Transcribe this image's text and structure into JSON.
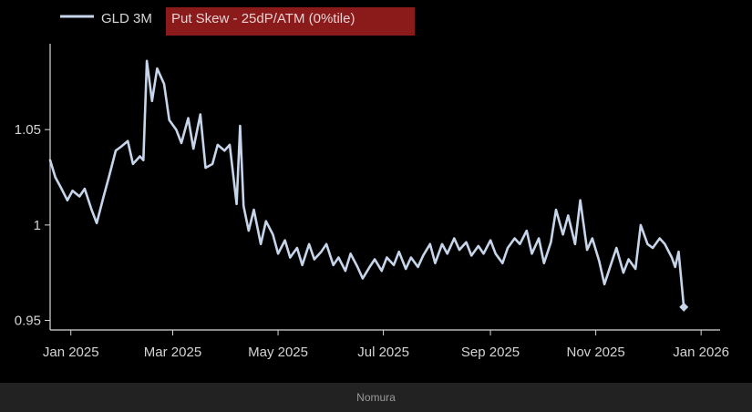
{
  "chart_data": {
    "type": "line",
    "legend": {
      "prefix": "GLD 3M",
      "highlight": "Put Skew - 25dP/ATM (0%tile)",
      "highlight_color": "#8b1a1a"
    },
    "title": "",
    "xlabel": "",
    "ylabel": "",
    "line_color": "#c7d5ea",
    "ylim": [
      0.945,
      1.095
    ],
    "xlim": [
      "2024-12-20",
      "2026-01-12"
    ],
    "y_ticks": [
      {
        "value": 0.95,
        "label": "0.95"
      },
      {
        "value": 1.0,
        "label": "1"
      },
      {
        "value": 1.05,
        "label": "1.05"
      }
    ],
    "x_ticks": [
      {
        "date": "2025-01-01",
        "label": "Jan 2025"
      },
      {
        "date": "2025-03-01",
        "label": "Mar 2025"
      },
      {
        "date": "2025-05-01",
        "label": "May 2025"
      },
      {
        "date": "2025-07-01",
        "label": "Jul 2025"
      },
      {
        "date": "2025-09-01",
        "label": "Sep 2025"
      },
      {
        "date": "2025-11-01",
        "label": "Nov 2025"
      },
      {
        "date": "2026-01-01",
        "label": "Jan 2026"
      }
    ],
    "series": [
      {
        "x": [
          "2024-12-20",
          "2024-12-23",
          "2024-12-26",
          "2024-12-30",
          "2025-01-02",
          "2025-01-06",
          "2025-01-09",
          "2025-01-13",
          "2025-01-16",
          "2025-01-20",
          "2025-01-23",
          "2025-01-27",
          "2025-01-30",
          "2025-02-03",
          "2025-02-06",
          "2025-02-10",
          "2025-02-12",
          "2025-02-14",
          "2025-02-17",
          "2025-02-20",
          "2025-02-24",
          "2025-02-27",
          "2025-03-03",
          "2025-03-06",
          "2025-03-10",
          "2025-03-13",
          "2025-03-17",
          "2025-03-20",
          "2025-03-24",
          "2025-03-27",
          "2025-03-31",
          "2025-04-03",
          "2025-04-07",
          "2025-04-09",
          "2025-04-11",
          "2025-04-14",
          "2025-04-17",
          "2025-04-21",
          "2025-04-24",
          "2025-04-28",
          "2025-05-01",
          "2025-05-05",
          "2025-05-08",
          "2025-05-12",
          "2025-05-15",
          "2025-05-19",
          "2025-05-22",
          "2025-05-26",
          "2025-05-29",
          "2025-06-02",
          "2025-06-05",
          "2025-06-09",
          "2025-06-12",
          "2025-06-16",
          "2025-06-19",
          "2025-06-23",
          "2025-06-26",
          "2025-06-30",
          "2025-07-03",
          "2025-07-07",
          "2025-07-10",
          "2025-07-14",
          "2025-07-17",
          "2025-07-21",
          "2025-07-24",
          "2025-07-28",
          "2025-07-31",
          "2025-08-04",
          "2025-08-07",
          "2025-08-11",
          "2025-08-14",
          "2025-08-18",
          "2025-08-21",
          "2025-08-25",
          "2025-08-28",
          "2025-09-01",
          "2025-09-04",
          "2025-09-08",
          "2025-09-11",
          "2025-09-15",
          "2025-09-18",
          "2025-09-22",
          "2025-09-25",
          "2025-09-29",
          "2025-10-02",
          "2025-10-06",
          "2025-10-09",
          "2025-10-13",
          "2025-10-16",
          "2025-10-20",
          "2025-10-23",
          "2025-10-27",
          "2025-10-30",
          "2025-11-03",
          "2025-11-06",
          "2025-11-10",
          "2025-11-13",
          "2025-11-17",
          "2025-11-20",
          "2025-11-24",
          "2025-11-27",
          "2025-12-01",
          "2025-12-04",
          "2025-12-08",
          "2025-12-11",
          "2025-12-15",
          "2025-12-17",
          "2025-12-19",
          "2025-12-22"
        ],
        "y": [
          1.034,
          1.025,
          1.02,
          1.013,
          1.018,
          1.015,
          1.019,
          1.008,
          1.001,
          1.015,
          1.025,
          1.039,
          1.041,
          1.044,
          1.032,
          1.036,
          1.034,
          1.086,
          1.065,
          1.082,
          1.074,
          1.055,
          1.05,
          1.043,
          1.056,
          1.04,
          1.058,
          1.03,
          1.032,
          1.042,
          1.039,
          1.042,
          1.011,
          1.052,
          1.01,
          0.997,
          1.008,
          0.99,
          1.002,
          0.995,
          0.985,
          0.992,
          0.983,
          0.988,
          0.979,
          0.99,
          0.982,
          0.986,
          0.99,
          0.979,
          0.983,
          0.976,
          0.985,
          0.978,
          0.972,
          0.978,
          0.982,
          0.976,
          0.983,
          0.979,
          0.986,
          0.977,
          0.983,
          0.978,
          0.984,
          0.99,
          0.98,
          0.99,
          0.985,
          0.993,
          0.987,
          0.991,
          0.984,
          0.989,
          0.985,
          0.992,
          0.985,
          0.98,
          0.988,
          0.993,
          0.99,
          0.997,
          0.985,
          0.993,
          0.98,
          0.991,
          1.008,
          0.995,
          1.005,
          0.99,
          1.013,
          0.987,
          0.993,
          0.981,
          0.969,
          0.98,
          0.988,
          0.975,
          0.982,
          0.977,
          1.0,
          0.99,
          0.988,
          0.993,
          0.99,
          0.983,
          0.978,
          0.986,
          0.957
        ]
      }
    ]
  },
  "source_caption": "Nomura"
}
